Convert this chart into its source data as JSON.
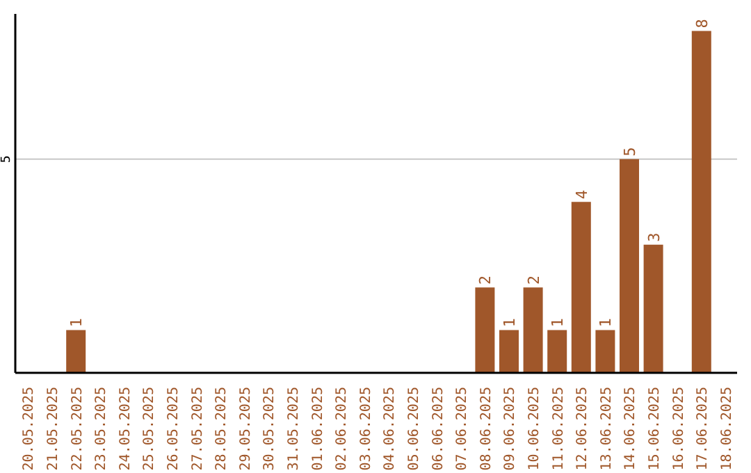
{
  "chart_data": {
    "type": "bar",
    "categories": [
      "20.05.2025",
      "21.05.2025",
      "22.05.2025",
      "23.05.2025",
      "24.05.2025",
      "25.05.2025",
      "26.05.2025",
      "27.05.2025",
      "28.05.2025",
      "29.05.2025",
      "30.05.2025",
      "31.05.2025",
      "01.06.2025",
      "02.06.2025",
      "03.06.2025",
      "04.06.2025",
      "05.06.2025",
      "06.06.2025",
      "07.06.2025",
      "08.06.2025",
      "09.06.2025",
      "10.06.2025",
      "11.06.2025",
      "12.06.2025",
      "13.06.2025",
      "14.06.2025",
      "15.06.2025",
      "16.06.2025",
      "17.06.2025",
      "18.06.2025"
    ],
    "values": [
      null,
      null,
      1,
      null,
      null,
      null,
      null,
      null,
      null,
      null,
      null,
      null,
      null,
      null,
      null,
      null,
      null,
      null,
      null,
      2,
      1,
      2,
      1,
      4,
      1,
      5,
      3,
      null,
      8,
      null
    ],
    "color": "#a0572a",
    "ylim": [
      0,
      8.4
    ],
    "yticks": [
      5
    ],
    "grid": "y",
    "data_labels": true
  }
}
